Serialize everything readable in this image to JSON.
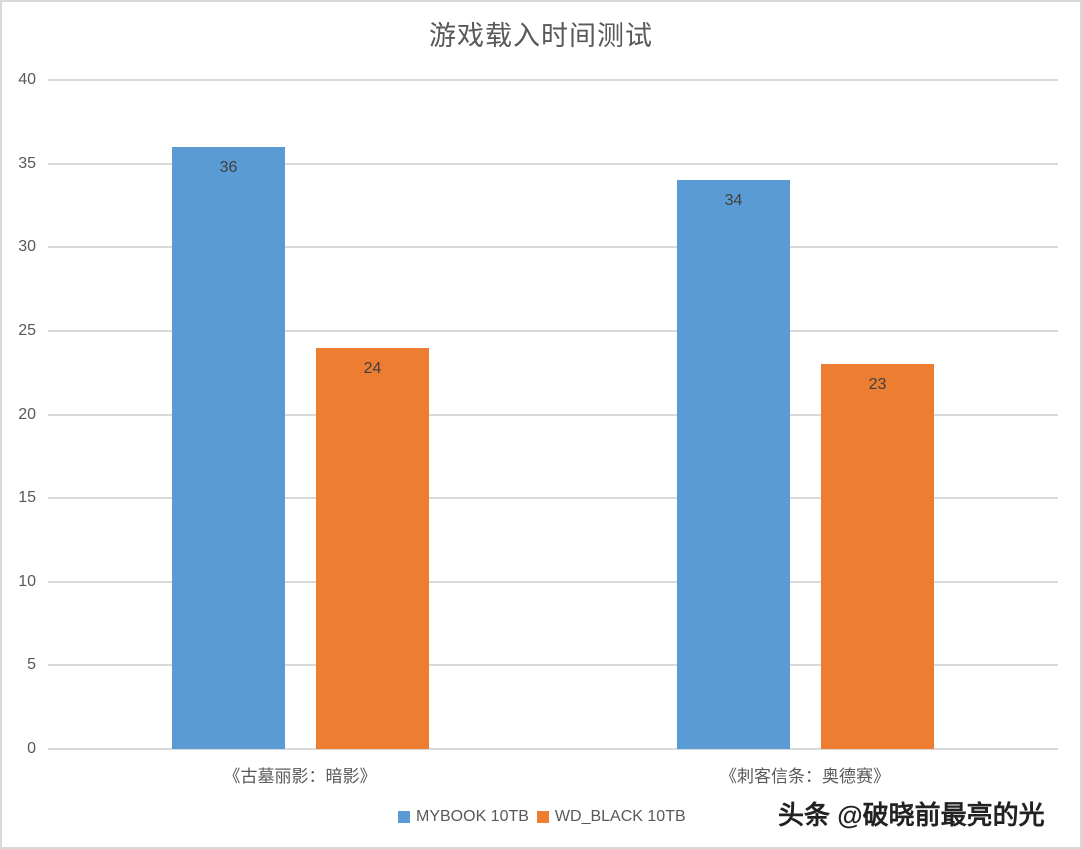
{
  "chart_data": {
    "type": "bar",
    "title": "游戏载入时间测试",
    "categories": [
      "《古墓丽影：暗影》",
      "《刺客信条：奥德赛》"
    ],
    "series": [
      {
        "name": "MYBOOK 10TB",
        "color": "#5b9bd5",
        "values": [
          36,
          34
        ]
      },
      {
        "name": "WD_BLACK 10TB",
        "color": "#ed7d31",
        "values": [
          24,
          23
        ]
      }
    ],
    "xlabel": "",
    "ylabel": "",
    "ylim": [
      0,
      40
    ],
    "yticks": [
      0,
      5,
      10,
      15,
      20,
      25,
      30,
      35,
      40
    ],
    "grid": true,
    "legend_position": "bottom",
    "data_labels": true
  },
  "yticks_text": [
    "0",
    "5",
    "10",
    "15",
    "20",
    "25",
    "30",
    "35",
    "40"
  ],
  "bars_text": [
    "36",
    "24",
    "34",
    "23"
  ],
  "watermark": "头条 @破晓前最亮的光"
}
